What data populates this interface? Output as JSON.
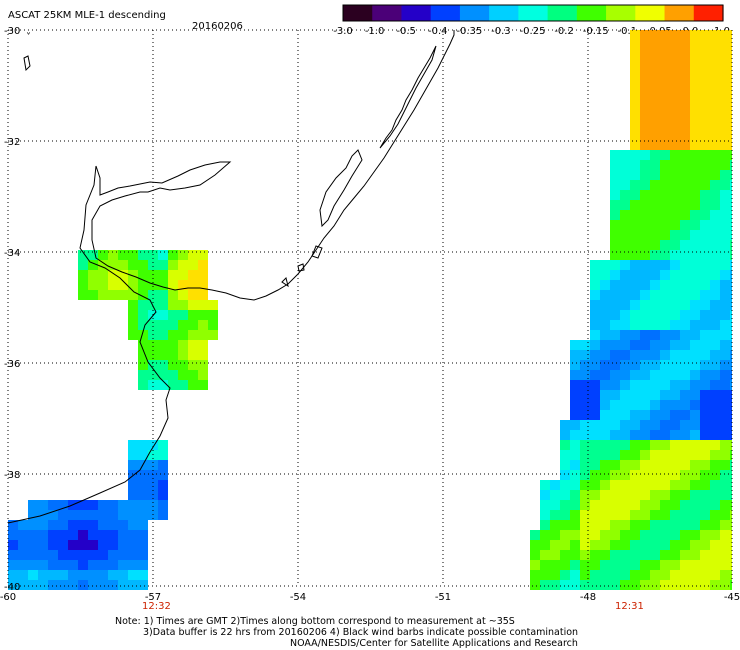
{
  "title": "ASCAT 25KM MLE-1 descending",
  "date": "20160206",
  "colorbar": {
    "ticks": [
      "-3.0",
      "-1.0",
      "-0.5",
      "-0.4",
      "-0.35",
      "-0.3",
      "-0.25",
      "-0.2",
      "-0.15",
      "-0.1",
      "-0.05",
      "0.0",
      "1.0"
    ],
    "colors": [
      "#2b0020",
      "#4b0078",
      "#2400c8",
      "#0040ff",
      "#0090ff",
      "#00d0ff",
      "#00ffe0",
      "#00ff80",
      "#40ff00",
      "#a8ff00",
      "#f0ff00",
      "#ffa000",
      "#ff2000"
    ]
  },
  "lat_labels": [
    "-30",
    "-32",
    "-34",
    "-36",
    "-38",
    "-40"
  ],
  "lon_labels": [
    "-60",
    "-57",
    "-54",
    "-51",
    "-48",
    "-45"
  ],
  "pass_times": [
    "12:32",
    "12:31"
  ],
  "notes": [
    "Note: 1) Times are GMT 2)Times along bottom correspond to measurement at ~35S",
    "3)Data buffer is 22 hrs from 20160206 4) Black wind barbs indicate possible contamination",
    "NOAA/NESDIS/Center for Satellite Applications and Research"
  ],
  "colors": {
    "grid": "#000000",
    "coast": "#000000",
    "time_label": "#cc2200"
  }
}
